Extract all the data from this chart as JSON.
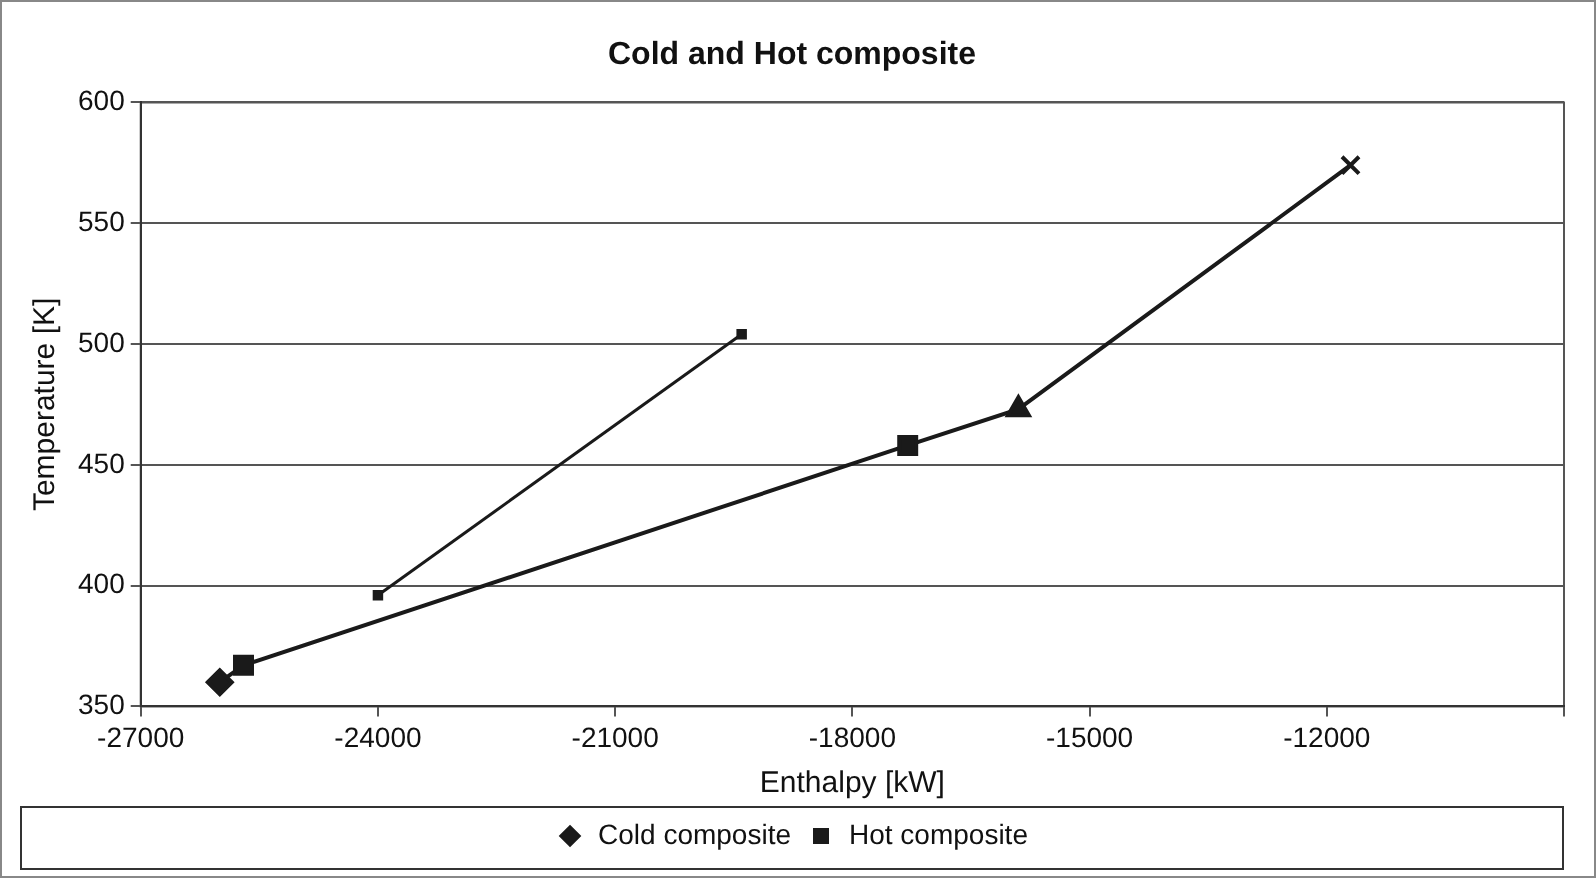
{
  "chart_data": {
    "type": "line",
    "title": "Cold and Hot composite",
    "xlabel": "Enthalpy [kW]",
    "ylabel": "Temperature [K]",
    "xlim": [
      -27000,
      -9000
    ],
    "xticks": [
      -27000,
      -24000,
      -21000,
      -18000,
      -15000,
      -12000,
      {
        "value": -9000,
        "label": null
      }
    ],
    "ylim": [
      350,
      600
    ],
    "yticks": [
      350,
      400,
      450,
      500,
      550,
      600
    ],
    "grid": "y",
    "legend": "bottom",
    "line_style": "solid",
    "series": [
      {
        "name": "Cold composite",
        "color": "#1a1a1a",
        "x": [
          -26000,
          -25700,
          -17300,
          -15900,
          -11700
        ],
        "values": [
          360,
          367,
          458,
          473,
          574
        ],
        "marker": [
          "diamond",
          "square",
          "square",
          "triangle",
          "cross"
        ]
      },
      {
        "name": "Hot composite",
        "color": "#1a1a1a",
        "x": [
          -24000,
          -19400
        ],
        "values": [
          396,
          504
        ],
        "marker": "square"
      }
    ]
  }
}
